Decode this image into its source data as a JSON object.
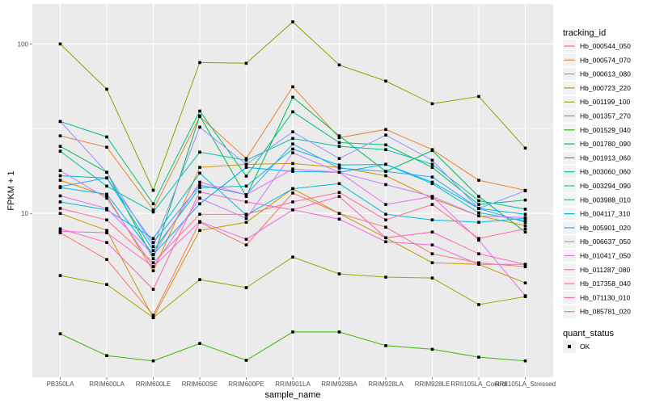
{
  "chart_data": {
    "type": "line",
    "xlabel": "sample_name",
    "ylabel": "FPKM + 1",
    "y_scale": "log10",
    "ylim": [
      1.08,
      172
    ],
    "y_ticks": [
      {
        "value": 10,
        "label": "10"
      },
      {
        "value": 100,
        "label": "100"
      }
    ],
    "grid": true,
    "legend_position": "right",
    "categories": [
      "PB350LA",
      "RRIM600LA",
      "RRIM600LE",
      "RRIM600SE",
      "RRIM600PE",
      "RRIM901LA",
      "RRIM928BA",
      "RRIM928LA",
      "RRIM928LE",
      "RRII105LA_Control",
      "RRII105LA_Stressed"
    ],
    "color_legend_title": "tracking_id",
    "shape_legend_title": "quant_status",
    "shape_legend_items": [
      "OK"
    ],
    "series": [
      {
        "name": "Hb_000544_050",
        "color": "#F8766D",
        "values": [
          7.69,
          5.35,
          2.51,
          8.87,
          6.52,
          13.2,
          10.0,
          8.3,
          5.78,
          5.12,
          4.85
        ]
      },
      {
        "name": "Hb_000574_070",
        "color": "#EA8331",
        "values": [
          28.7,
          24.6,
          10.5,
          37.3,
          21.1,
          55.9,
          28.0,
          31.3,
          23.8,
          15.7,
          13.7
        ]
      },
      {
        "name": "Hb_000613_080",
        "color": "#D89000",
        "values": [
          15.7,
          12.7,
          4.59,
          18.7,
          19.5,
          19.7,
          18.7,
          16.7,
          12.3,
          9.68,
          8.48
        ]
      },
      {
        "name": "Hb_000723_220",
        "color": "#C09B00",
        "values": [
          10.0,
          7.94,
          2.43,
          7.94,
          8.87,
          14.0,
          10.0,
          7.19,
          5.12,
          5.01,
          3.89
        ]
      },
      {
        "name": "Hb_001199_100",
        "color": "#A3A500",
        "values": [
          4.3,
          3.81,
          2.43,
          4.07,
          3.65,
          5.53,
          4.4,
          4.21,
          4.16,
          2.9,
          3.23
        ]
      },
      {
        "name": "Hb_001357_270",
        "color": "#7CAE00",
        "values": [
          100,
          54.1,
          13.7,
          77.7,
          76.9,
          135,
          75.2,
          60.4,
          44.4,
          49.0,
          24.3
        ]
      },
      {
        "name": "Hb_001529_040",
        "color": "#39B600",
        "values": [
          1.95,
          1.45,
          1.35,
          1.71,
          1.36,
          2.0,
          2.0,
          1.66,
          1.58,
          1.42,
          1.35
        ]
      },
      {
        "name": "Hb_001780_090",
        "color": "#00BB4E",
        "values": [
          24.9,
          17.5,
          5.41,
          37.7,
          12.6,
          48.5,
          28.7,
          17.7,
          23.5,
          12.6,
          7.77
        ]
      },
      {
        "name": "Hb_001913_060",
        "color": "#00BF7D",
        "values": [
          34.9,
          28.3,
          11.4,
          40.2,
          16.6,
          39.8,
          26.2,
          25.4,
          18.7,
          11.3,
          12.0
        ]
      },
      {
        "name": "Hb_003060_060",
        "color": "#00C1A3",
        "values": [
          23.3,
          14.5,
          10.2,
          23.0,
          20.6,
          27.7,
          24.9,
          23.8,
          19.5,
          11.9,
          10.6
        ]
      },
      {
        "name": "Hb_003294_090",
        "color": "#00BFC4",
        "values": [
          16.7,
          16.2,
          6.04,
          14.2,
          14.5,
          24.0,
          19.3,
          19.5,
          15.0,
          10.1,
          9.06
        ]
      },
      {
        "name": "Hb_003988_010",
        "color": "#00BAE0",
        "values": [
          11.7,
          10.5,
          7.12,
          17.3,
          9.78,
          14.0,
          15.0,
          9.89,
          9.16,
          8.87,
          9.36
        ]
      },
      {
        "name": "Hb_004117_310",
        "color": "#00B0F6",
        "values": [
          14.2,
          13.0,
          5.72,
          11.4,
          18.7,
          17.7,
          17.5,
          19.5,
          15.3,
          10.7,
          9.89
        ]
      },
      {
        "name": "Hb_005901_020",
        "color": "#35A2FF",
        "values": [
          14.4,
          16.2,
          6.74,
          14.7,
          12.9,
          25.7,
          18.5,
          17.7,
          16.4,
          10.7,
          8.87
        ]
      },
      {
        "name": "Hb_006637_050",
        "color": "#9590FF",
        "values": [
          34.9,
          17.5,
          6.38,
          32.3,
          19.5,
          30.3,
          21.1,
          29.0,
          20.6,
          10.7,
          13.6
        ]
      },
      {
        "name": "Hb_010417_050",
        "color": "#C77CFF",
        "values": [
          17.9,
          12.3,
          4.85,
          12.3,
          9.36,
          22.8,
          17.5,
          14.8,
          12.6,
          9.68,
          9.46
        ]
      },
      {
        "name": "Hb_011287_080",
        "color": "#E76BF3",
        "values": [
          12.7,
          10.7,
          5.72,
          15.3,
          12.9,
          18.3,
          17.5,
          11.3,
          12.6,
          6.96,
          3.27
        ]
      },
      {
        "name": "Hb_017358_040",
        "color": "#FA62DB",
        "values": [
          7.86,
          7.69,
          4.85,
          8.96,
          7.04,
          10.5,
          9.26,
          6.81,
          6.52,
          5.01,
          5.01
        ]
      },
      {
        "name": "Hb_071130_010",
        "color": "#FF62BC",
        "values": [
          8.12,
          6.74,
          3.57,
          13.4,
          11.7,
          10.5,
          12.6,
          7.19,
          7.77,
          5.78,
          5.01
        ]
      },
      {
        "name": "Hb_085781_020",
        "color": "#FF6C91",
        "values": [
          10.7,
          9.16,
          5.12,
          9.89,
          9.89,
          11.7,
          13.3,
          9.16,
          11.3,
          7.12,
          8.12
        ]
      }
    ]
  }
}
